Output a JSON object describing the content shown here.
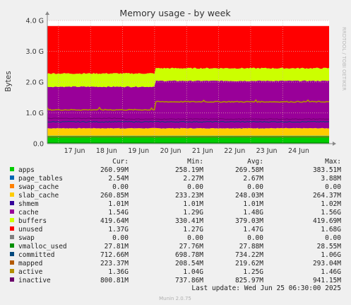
{
  "chart_data": {
    "type": "area",
    "title": "Memory usage - by week",
    "ylabel": "Bytes",
    "watermark": "RRDTOOL / TOBI OETIKER",
    "yticks": [
      {
        "value": 0,
        "label": "0.0"
      },
      {
        "value": 1.0,
        "label": "1.0 G"
      },
      {
        "value": 2.0,
        "label": "2.0 G"
      },
      {
        "value": 3.0,
        "label": "3.0 G"
      },
      {
        "value": 4.0,
        "label": "4.0 G"
      }
    ],
    "ylim": [
      0,
      4.0
    ],
    "xticks": [
      "17 Jun",
      "18 Jun",
      "19 Jun",
      "20 Jun",
      "21 Jun",
      "22 Jun",
      "23 Jun",
      "24 Jun"
    ],
    "grid": true,
    "stack_top_approx_GiB": {
      "apps": 0.25,
      "page_tables": 0.26,
      "swap_cache": 0.26,
      "slab_cache": 0.5,
      "shmem": 0.5,
      "cache": 2.04,
      "buffers": 2.45,
      "unused": 3.82
    },
    "line_levels_approx_GiB": {
      "swap": 0.0,
      "vmalloc_used": 0.03,
      "committed": 0.71,
      "mapped": 0.22,
      "active": 1.36,
      "inactive": 0.8
    },
    "columns": [
      "Cur:",
      "Min:",
      "Avg:",
      "Max:"
    ],
    "series": [
      {
        "name": "apps",
        "color": "#00cc00",
        "cur": "260.99M",
        "min": "258.19M",
        "avg": "269.58M",
        "max": "383.51M"
      },
      {
        "name": "page_tables",
        "color": "#0066b3",
        "cur": "2.54M",
        "min": "2.27M",
        "avg": "2.67M",
        "max": "3.88M"
      },
      {
        "name": "swap_cache",
        "color": "#ff8000",
        "cur": "0.00",
        "min": "0.00",
        "avg": "0.00",
        "max": "0.00"
      },
      {
        "name": "slab_cache",
        "color": "#ffcc00",
        "cur": "260.85M",
        "min": "233.23M",
        "avg": "248.03M",
        "max": "264.37M"
      },
      {
        "name": "shmem",
        "color": "#330099",
        "cur": "1.01M",
        "min": "1.01M",
        "avg": "1.01M",
        "max": "1.02M"
      },
      {
        "name": "cache",
        "color": "#990099",
        "cur": "1.54G",
        "min": "1.29G",
        "avg": "1.48G",
        "max": "1.56G"
      },
      {
        "name": "buffers",
        "color": "#ccff00",
        "cur": "419.64M",
        "min": "330.41M",
        "avg": "379.03M",
        "max": "419.69M"
      },
      {
        "name": "unused",
        "color": "#ff0000",
        "cur": "1.37G",
        "min": "1.27G",
        "avg": "1.47G",
        "max": "1.68G"
      },
      {
        "name": "swap",
        "color": "#808080",
        "cur": "0.00",
        "min": "0.00",
        "avg": "0.00",
        "max": "0.00"
      },
      {
        "name": "vmalloc_used",
        "color": "#008f00",
        "cur": "27.81M",
        "min": "27.76M",
        "avg": "27.88M",
        "max": "28.55M"
      },
      {
        "name": "committed",
        "color": "#00487d",
        "cur": "712.66M",
        "min": "698.78M",
        "avg": "734.22M",
        "max": "1.06G"
      },
      {
        "name": "mapped",
        "color": "#b35a00",
        "cur": "223.37M",
        "min": "208.54M",
        "avg": "219.62M",
        "max": "293.04M"
      },
      {
        "name": "active",
        "color": "#b38f00",
        "cur": "1.36G",
        "min": "1.04G",
        "avg": "1.25G",
        "max": "1.46G"
      },
      {
        "name": "inactive",
        "color": "#6b006b",
        "cur": "800.81M",
        "min": "737.86M",
        "avg": "825.97M",
        "max": "941.15M"
      }
    ],
    "last_update": "Last update: Wed Jun 25 06:30:00 2025",
    "footer": "Munin 2.0.75"
  }
}
